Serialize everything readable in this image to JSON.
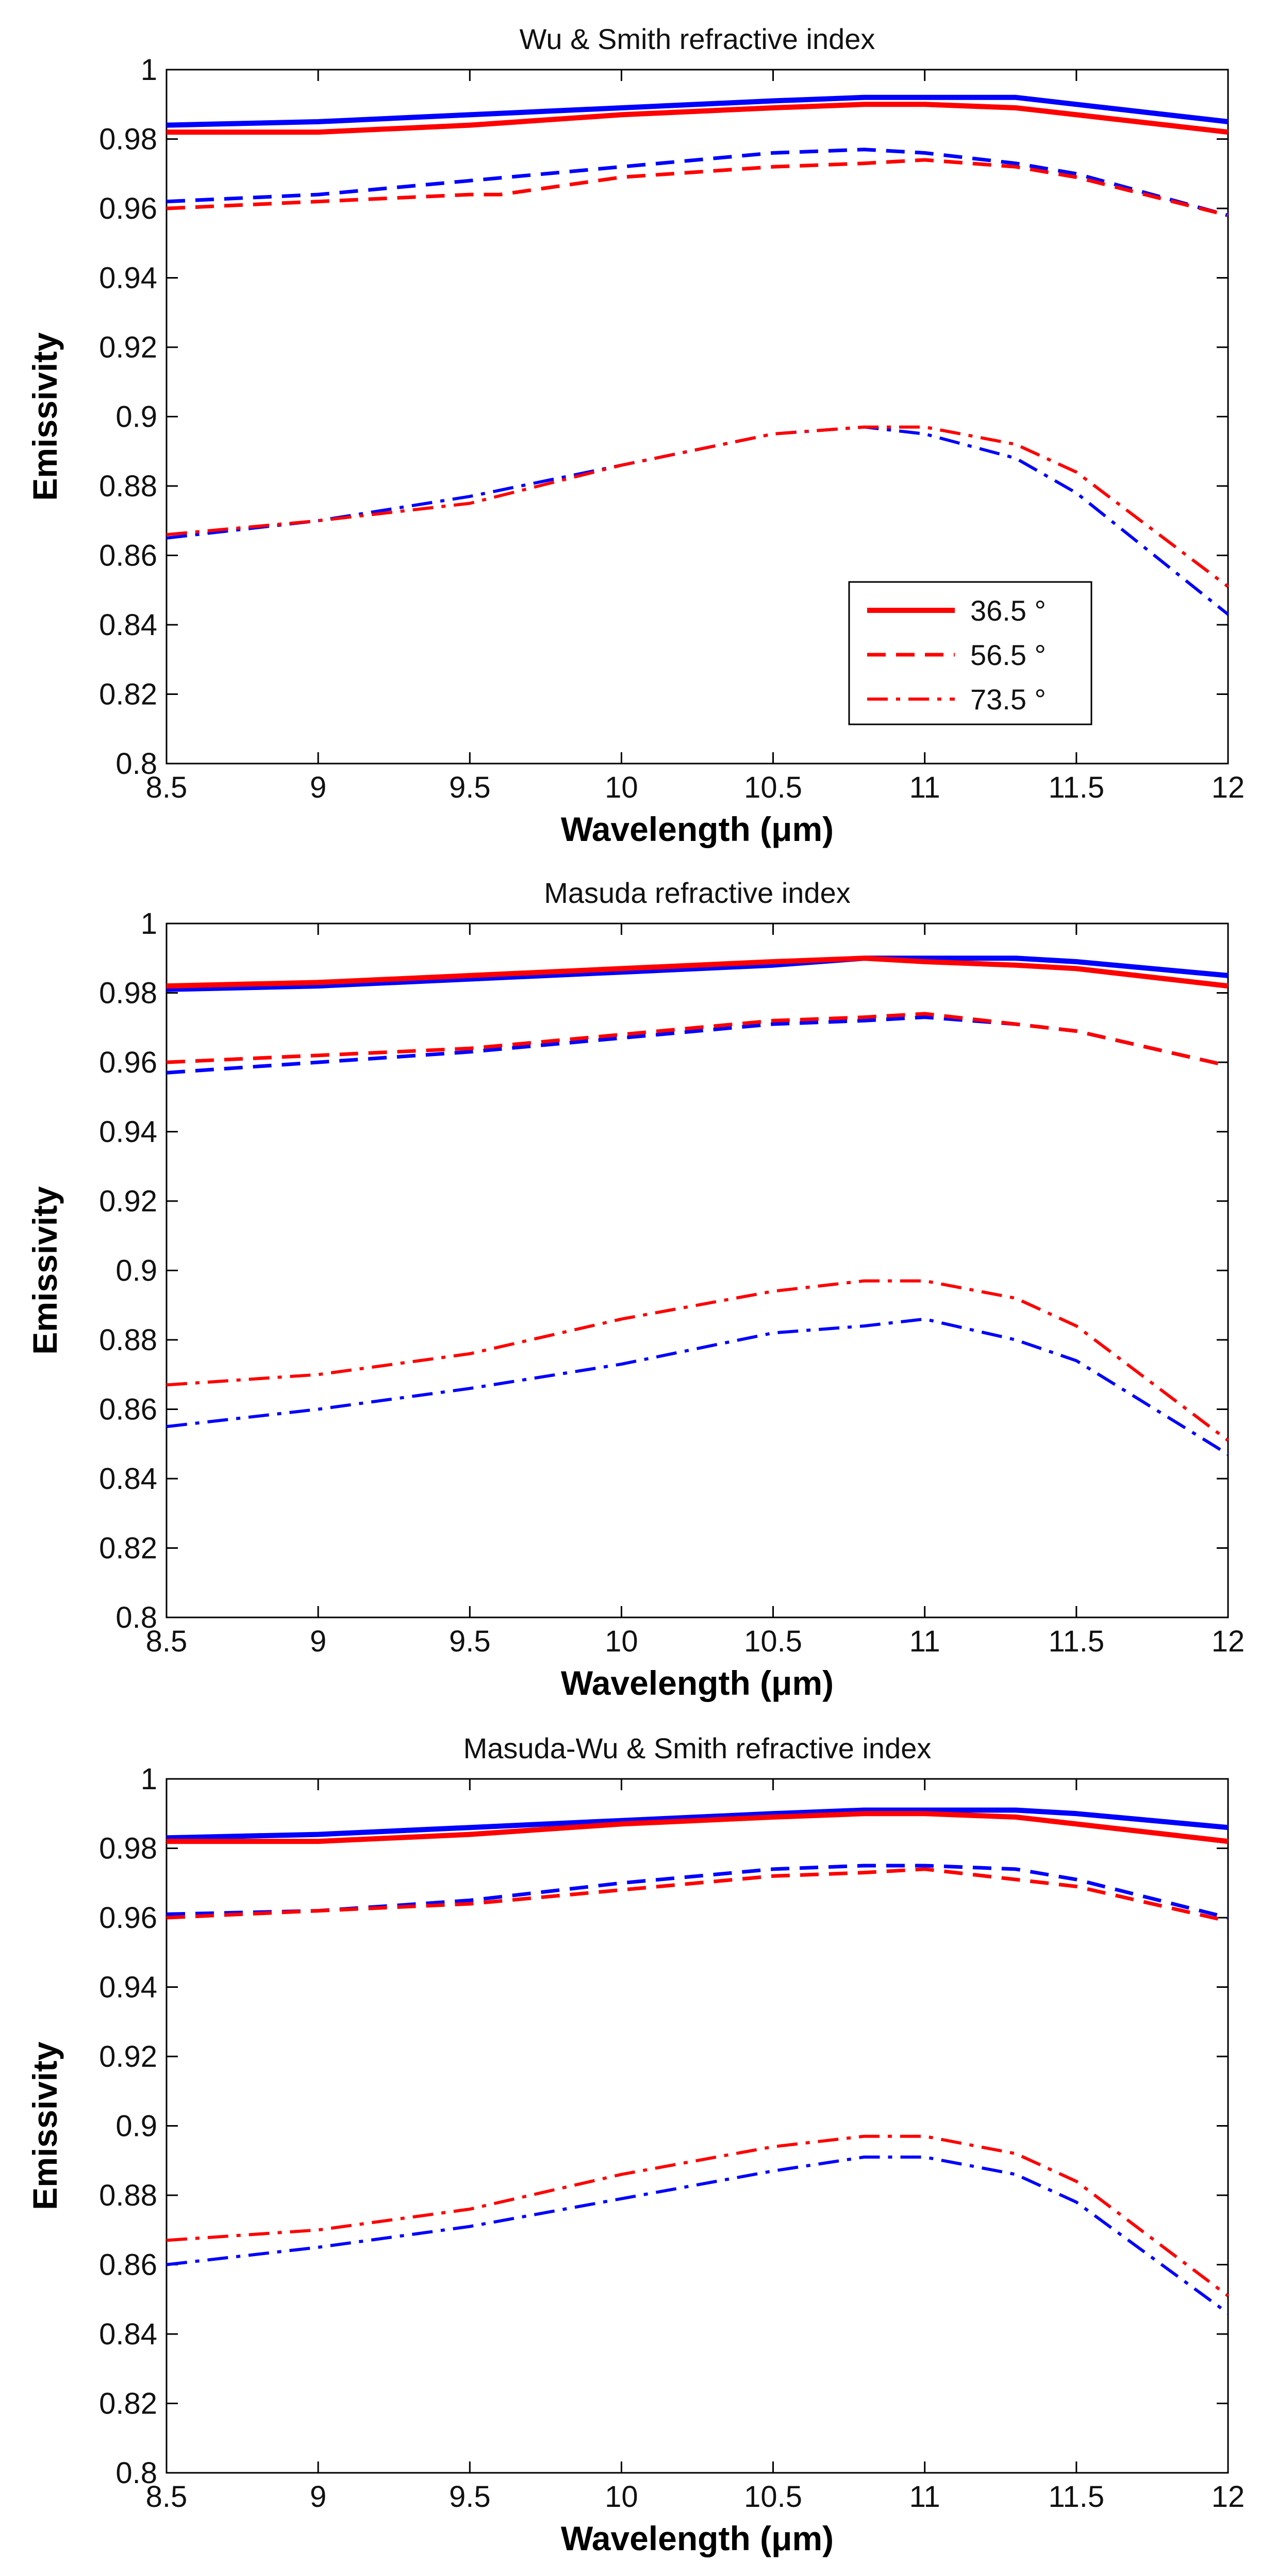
{
  "chart_data": [
    {
      "type": "line",
      "title": "Wu & Smith refractive index",
      "xlabel": "Wavelength (μm)",
      "ylabel": "Emissivity",
      "xlim": [
        8.5,
        12
      ],
      "ylim": [
        0.8,
        1.0
      ],
      "x_ticks": [
        "8.5",
        "9",
        "9.5",
        "10",
        "10.5",
        "11",
        "11.5",
        "12"
      ],
      "y_ticks": [
        "0.8",
        "0.82",
        "0.84",
        "0.86",
        "0.88",
        "0.9",
        "0.92",
        "0.94",
        "0.96",
        "0.98",
        "1"
      ],
      "legend": {
        "position": "lower-right",
        "entries": [
          {
            "label": "36.5 °",
            "style": "solid",
            "color": "#ff0000"
          },
          {
            "label": "56.5 °",
            "style": "dashed",
            "color": "#ff0000"
          },
          {
            "label": "73.5 °",
            "style": "dashdot",
            "color": "#ff0000"
          }
        ]
      },
      "series": [
        {
          "color": "#0000ff",
          "style": "solid",
          "x": [
            8.5,
            9.0,
            9.5,
            10.0,
            10.5,
            10.8,
            11.0,
            11.3,
            11.5,
            12.0
          ],
          "y": [
            0.984,
            0.985,
            0.987,
            0.989,
            0.991,
            0.992,
            0.992,
            0.992,
            0.99,
            0.985
          ]
        },
        {
          "color": "#ff0000",
          "style": "solid",
          "x": [
            8.5,
            9.0,
            9.5,
            10.0,
            10.5,
            10.8,
            11.0,
            11.3,
            11.5,
            12.0
          ],
          "y": [
            0.982,
            0.982,
            0.984,
            0.987,
            0.989,
            0.99,
            0.99,
            0.989,
            0.987,
            0.982
          ]
        },
        {
          "color": "#0000ff",
          "style": "dashed",
          "x": [
            8.5,
            9.0,
            9.5,
            10.0,
            10.5,
            10.8,
            11.0,
            11.3,
            11.5,
            12.0
          ],
          "y": [
            0.962,
            0.964,
            0.968,
            0.972,
            0.976,
            0.977,
            0.976,
            0.973,
            0.97,
            0.958
          ]
        },
        {
          "color": "#ff0000",
          "style": "dashed",
          "x": [
            8.5,
            9.0,
            9.5,
            9.6,
            10.0,
            10.5,
            10.8,
            11.0,
            11.3,
            11.5,
            12.0
          ],
          "y": [
            0.96,
            0.962,
            0.964,
            0.964,
            0.969,
            0.972,
            0.973,
            0.974,
            0.972,
            0.969,
            0.958
          ]
        },
        {
          "color": "#0000ff",
          "style": "dashdot",
          "x": [
            8.5,
            9.0,
            9.5,
            10.0,
            10.5,
            10.8,
            11.0,
            11.3,
            11.5,
            12.0
          ],
          "y": [
            0.865,
            0.87,
            0.877,
            0.886,
            0.895,
            0.897,
            0.895,
            0.888,
            0.878,
            0.843
          ]
        },
        {
          "color": "#ff0000",
          "style": "dashdot",
          "x": [
            8.5,
            9.0,
            9.5,
            10.0,
            10.5,
            10.8,
            11.0,
            11.3,
            11.5,
            12.0
          ],
          "y": [
            0.866,
            0.87,
            0.875,
            0.886,
            0.895,
            0.897,
            0.897,
            0.892,
            0.884,
            0.851
          ]
        }
      ]
    },
    {
      "type": "line",
      "title": "Masuda refractive index",
      "xlabel": "Wavelength (μm)",
      "ylabel": "Emissivity",
      "xlim": [
        8.5,
        12
      ],
      "ylim": [
        0.8,
        1.0
      ],
      "x_ticks": [
        "8.5",
        "9",
        "9.5",
        "10",
        "10.5",
        "11",
        "11.5",
        "12"
      ],
      "y_ticks": [
        "0.8",
        "0.82",
        "0.84",
        "0.86",
        "0.88",
        "0.9",
        "0.92",
        "0.94",
        "0.96",
        "0.98",
        "1"
      ],
      "series": [
        {
          "color": "#0000ff",
          "style": "solid",
          "x": [
            8.5,
            9.0,
            9.5,
            10.0,
            10.5,
            10.8,
            11.0,
            11.3,
            11.5,
            12.0
          ],
          "y": [
            0.981,
            0.982,
            0.984,
            0.986,
            0.988,
            0.99,
            0.99,
            0.99,
            0.989,
            0.985
          ]
        },
        {
          "color": "#ff0000",
          "style": "solid",
          "x": [
            8.5,
            9.0,
            9.5,
            10.0,
            10.5,
            10.8,
            11.0,
            11.3,
            11.5,
            12.0
          ],
          "y": [
            0.982,
            0.983,
            0.985,
            0.987,
            0.989,
            0.99,
            0.989,
            0.988,
            0.987,
            0.982
          ]
        },
        {
          "color": "#0000ff",
          "style": "dashed",
          "x": [
            8.5,
            9.0,
            9.5,
            10.0,
            10.5,
            10.8,
            11.0,
            11.3,
            11.5,
            12.0
          ],
          "y": [
            0.957,
            0.96,
            0.963,
            0.967,
            0.971,
            0.972,
            0.973,
            0.971,
            0.969,
            0.959
          ]
        },
        {
          "color": "#ff0000",
          "style": "dashed",
          "x": [
            8.5,
            9.0,
            9.5,
            10.0,
            10.5,
            10.8,
            11.0,
            11.3,
            11.5,
            12.0
          ],
          "y": [
            0.96,
            0.962,
            0.964,
            0.968,
            0.972,
            0.973,
            0.974,
            0.971,
            0.969,
            0.959
          ]
        },
        {
          "color": "#0000ff",
          "style": "dashdot",
          "x": [
            8.5,
            9.0,
            9.5,
            10.0,
            10.5,
            10.8,
            11.0,
            11.3,
            11.5,
            12.0
          ],
          "y": [
            0.855,
            0.86,
            0.866,
            0.873,
            0.882,
            0.884,
            0.886,
            0.88,
            0.874,
            0.847
          ]
        },
        {
          "color": "#ff0000",
          "style": "dashdot",
          "x": [
            8.5,
            9.0,
            9.5,
            10.0,
            10.5,
            10.8,
            11.0,
            11.3,
            11.5,
            12.0
          ],
          "y": [
            0.867,
            0.87,
            0.876,
            0.886,
            0.894,
            0.897,
            0.897,
            0.892,
            0.884,
            0.851
          ]
        }
      ]
    },
    {
      "type": "line",
      "title": "Masuda-Wu & Smith refractive index",
      "xlabel": "Wavelength (μm)",
      "ylabel": "Emissivity",
      "xlim": [
        8.5,
        12
      ],
      "ylim": [
        0.8,
        1.0
      ],
      "x_ticks": [
        "8.5",
        "9",
        "9.5",
        "10",
        "10.5",
        "11",
        "11.5",
        "12"
      ],
      "y_ticks": [
        "0.8",
        "0.82",
        "0.84",
        "0.86",
        "0.88",
        "0.9",
        "0.92",
        "0.94",
        "0.96",
        "0.98",
        "1"
      ],
      "series": [
        {
          "color": "#0000ff",
          "style": "solid",
          "x": [
            8.5,
            9.0,
            9.5,
            10.0,
            10.5,
            10.8,
            11.0,
            11.3,
            11.5,
            12.0
          ],
          "y": [
            0.983,
            0.984,
            0.986,
            0.988,
            0.99,
            0.991,
            0.991,
            0.991,
            0.99,
            0.986
          ]
        },
        {
          "color": "#ff0000",
          "style": "solid",
          "x": [
            8.5,
            9.0,
            9.5,
            10.0,
            10.5,
            10.8,
            11.0,
            11.3,
            11.5,
            12.0
          ],
          "y": [
            0.982,
            0.982,
            0.984,
            0.987,
            0.989,
            0.99,
            0.99,
            0.989,
            0.987,
            0.982
          ]
        },
        {
          "color": "#0000ff",
          "style": "dashed",
          "x": [
            8.5,
            9.0,
            9.5,
            10.0,
            10.5,
            10.8,
            11.0,
            11.3,
            11.5,
            12.0
          ],
          "y": [
            0.961,
            0.962,
            0.965,
            0.97,
            0.974,
            0.975,
            0.975,
            0.974,
            0.971,
            0.96
          ]
        },
        {
          "color": "#ff0000",
          "style": "dashed",
          "x": [
            8.5,
            9.0,
            9.5,
            10.0,
            10.5,
            10.8,
            11.0,
            11.3,
            11.5,
            12.0
          ],
          "y": [
            0.96,
            0.962,
            0.964,
            0.968,
            0.972,
            0.973,
            0.974,
            0.971,
            0.969,
            0.959
          ]
        },
        {
          "color": "#0000ff",
          "style": "dashdot",
          "x": [
            8.5,
            9.0,
            9.5,
            10.0,
            10.5,
            10.8,
            11.0,
            11.3,
            11.5,
            12.0
          ],
          "y": [
            0.86,
            0.865,
            0.871,
            0.879,
            0.887,
            0.891,
            0.891,
            0.886,
            0.878,
            0.846
          ]
        },
        {
          "color": "#ff0000",
          "style": "dashdot",
          "x": [
            8.5,
            9.0,
            9.5,
            10.0,
            10.5,
            10.8,
            11.0,
            11.3,
            11.5,
            12.0
          ],
          "y": [
            0.867,
            0.87,
            0.876,
            0.886,
            0.894,
            0.897,
            0.897,
            0.892,
            0.884,
            0.851
          ]
        }
      ]
    }
  ]
}
